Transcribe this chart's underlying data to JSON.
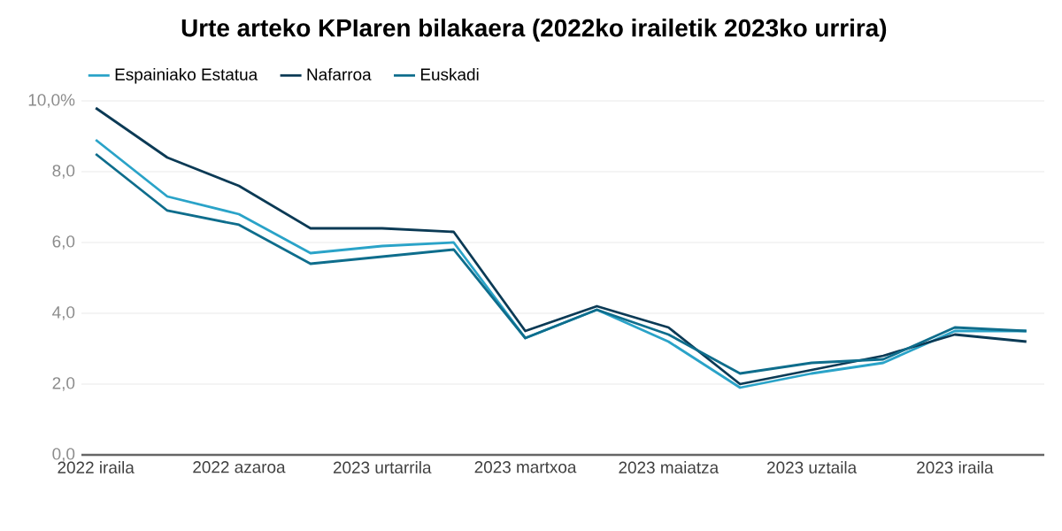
{
  "chart_data": {
    "type": "line",
    "title": "Urte arteko KPIaren bilakaera (2022ko irailetik 2023ko urrira)",
    "categories": [
      "2022 iraila",
      null,
      "2022 azaroa",
      null,
      "2023 urtarrila",
      null,
      "2023 martxoa",
      null,
      "2023 maiatza",
      null,
      "2023 uztaila",
      null,
      "2023 iraila",
      null
    ],
    "series": [
      {
        "name": "Espainiako Estatua",
        "color": "#2aa3c8",
        "values": [
          8.9,
          7.3,
          6.8,
          5.7,
          5.9,
          6.0,
          3.3,
          4.1,
          3.2,
          1.9,
          2.3,
          2.6,
          3.5,
          3.5
        ]
      },
      {
        "name": "Nafarroa",
        "color": "#0b3a55",
        "values": [
          9.8,
          8.4,
          7.6,
          6.4,
          6.4,
          6.3,
          3.5,
          4.2,
          3.6,
          2.0,
          2.4,
          2.8,
          3.4,
          3.2
        ]
      },
      {
        "name": "Euskadi",
        "color": "#0e6d8c",
        "values": [
          8.5,
          6.9,
          6.5,
          5.4,
          5.6,
          5.8,
          3.3,
          4.1,
          3.4,
          2.3,
          2.6,
          2.7,
          3.6,
          3.5
        ]
      }
    ],
    "ylim": [
      0,
      10
    ],
    "yticks": [
      {
        "value": 0,
        "label": "0,0"
      },
      {
        "value": 2,
        "label": "2,0"
      },
      {
        "value": 4,
        "label": "4,0"
      },
      {
        "value": 6,
        "label": "6,0"
      },
      {
        "value": 8,
        "label": "8,0"
      },
      {
        "value": 10,
        "label": "10,0%"
      }
    ],
    "grid": "y",
    "legend": "top left",
    "marker": "none",
    "line_style": "solid"
  }
}
